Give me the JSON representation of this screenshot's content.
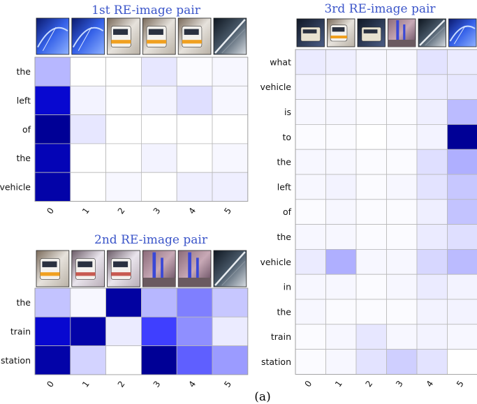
{
  "caption": "(a)",
  "chart_data": [
    {
      "type": "heatmap",
      "title": "1st RE-image pair",
      "rows": [
        "the",
        "left",
        "of",
        "the",
        "vehicle"
      ],
      "cols": [
        "0",
        "1",
        "2",
        "3",
        "4",
        "5"
      ],
      "thumbnails": [
        "blue-car-window",
        "blue-car-window",
        "orange-train",
        "orange-train",
        "orange-train",
        "platform-dark"
      ],
      "values": [
        [
          0.18,
          0.0,
          0.0,
          0.06,
          0.01,
          0.02
        ],
        [
          0.78,
          0.03,
          0.0,
          0.03,
          0.08,
          0.02
        ],
        [
          1.0,
          0.06,
          0.0,
          0.0,
          0.0,
          0.0
        ],
        [
          0.88,
          0.0,
          0.0,
          0.03,
          0.0,
          0.02
        ],
        [
          0.93,
          0.0,
          0.02,
          0.0,
          0.04,
          0.04
        ]
      ]
    },
    {
      "type": "heatmap",
      "title": "2nd RE-image pair",
      "rows": [
        "the",
        "train",
        "station"
      ],
      "cols": [
        "0",
        "1",
        "2",
        "3",
        "4",
        "5"
      ],
      "thumbnails": [
        "orange-train",
        "white-train",
        "white-train",
        "blue-poles",
        "blue-poles",
        "platform-dark"
      ],
      "values": [
        [
          0.15,
          0.02,
          0.96,
          0.18,
          0.32,
          0.14
        ],
        [
          0.78,
          0.93,
          0.05,
          0.48,
          0.28,
          0.05
        ],
        [
          0.93,
          0.11,
          0.0,
          1.0,
          0.4,
          0.25
        ]
      ]
    },
    {
      "type": "heatmap",
      "title": "3rd RE-image pair",
      "rows": [
        "what",
        "vehicle",
        "is",
        "to",
        "the",
        "left",
        "of",
        "the",
        "vehicle",
        "in",
        "the",
        "train",
        "station"
      ],
      "cols": [
        "0",
        "1",
        "2",
        "3",
        "4",
        "5"
      ],
      "thumbnails": [
        "train-night",
        "orange-train",
        "train-night",
        "blue-poles",
        "platform-dark",
        "blue-car-window"
      ],
      "values": [
        [
          0.05,
          0.04,
          0.02,
          0.02,
          0.07,
          0.05
        ],
        [
          0.03,
          0.02,
          0.01,
          0.01,
          0.05,
          0.06
        ],
        [
          0.02,
          0.02,
          0.01,
          0.01,
          0.04,
          0.17
        ],
        [
          0.01,
          0.01,
          0.0,
          0.01,
          0.03,
          1.0
        ],
        [
          0.02,
          0.02,
          0.01,
          0.01,
          0.08,
          0.2
        ],
        [
          0.02,
          0.03,
          0.01,
          0.02,
          0.07,
          0.14
        ],
        [
          0.01,
          0.02,
          0.01,
          0.01,
          0.04,
          0.15
        ],
        [
          0.02,
          0.02,
          0.01,
          0.01,
          0.05,
          0.08
        ],
        [
          0.05,
          0.2,
          0.02,
          0.02,
          0.1,
          0.17
        ],
        [
          0.02,
          0.02,
          0.01,
          0.02,
          0.05,
          0.03
        ],
        [
          0.02,
          0.01,
          0.01,
          0.01,
          0.03,
          0.03
        ],
        [
          0.01,
          0.02,
          0.06,
          0.02,
          0.03,
          0.02
        ],
        [
          0.01,
          0.02,
          0.07,
          0.12,
          0.07,
          0.0
        ]
      ]
    }
  ]
}
